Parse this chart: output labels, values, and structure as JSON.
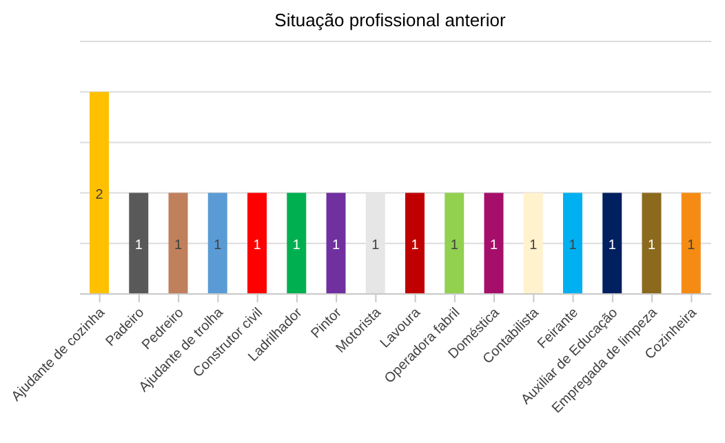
{
  "chart_data": {
    "type": "bar",
    "title": "Situação profissional anterior",
    "categories": [
      "Ajudante de cozinha",
      "Padeiro",
      "Pedreiro",
      "Ajudante de trolha",
      "Construtor civil",
      "Ladrilhador",
      "Pintor",
      "Motorista",
      "Lavoura",
      "Operadora fabril",
      "Doméstica",
      "Contabilista",
      "Feirante",
      "Auxiliar de Educação",
      "Empregada de limpeza",
      "Cozinheira"
    ],
    "values": [
      2,
      1,
      1,
      1,
      1,
      1,
      1,
      1,
      1,
      1,
      1,
      1,
      1,
      1,
      1,
      1
    ],
    "colors": [
      "#ffc000",
      "#595959",
      "#c0805c",
      "#5b9bd5",
      "#ff0000",
      "#00b050",
      "#7030a0",
      "#e6e6e6",
      "#c00000",
      "#92d050",
      "#a50f6a",
      "#fff2cc",
      "#00b0f0",
      "#002060",
      "#8b6a1e",
      "#f58b12"
    ],
    "ylim": [
      0,
      2.5
    ],
    "grid": "y",
    "data_labels": true,
    "tick_labels": "x",
    "legend": false
  }
}
